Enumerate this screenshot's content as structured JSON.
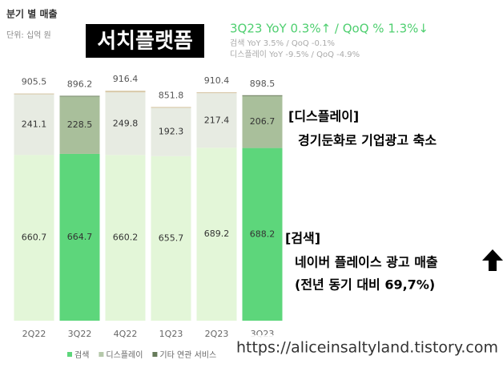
{
  "chart_data": {
    "type": "stacked-bar",
    "title": "분기 별 매출",
    "unit": "단위: 십억 원",
    "badge": "서치플랫폼",
    "headline": "3Q23 YoY 0.3%↑ / QoQ % 1.3%↓",
    "sublines": [
      "검색 YoY 3.5% / QoQ -0.1%",
      "디스플레이 YoY -9.5% / QoQ -4.9%"
    ],
    "categories": [
      "2Q22",
      "3Q22",
      "4Q22",
      "1Q23",
      "2Q23",
      "3Q23"
    ],
    "series": [
      {
        "name": "검색",
        "color": "#5dd67b",
        "colors": [
          "#e3f6d8",
          "#5dd67b",
          "#e3f6d8",
          "#e3f6d8",
          "#e3f6d8",
          "#5dd67b"
        ],
        "values": [
          660.7,
          664.7,
          660.2,
          655.7,
          689.2,
          688.2
        ]
      },
      {
        "name": "디스플레이",
        "color": "#b5c8aa",
        "colors": [
          "#e7ebe2",
          "#a9bf9b",
          "#e7ebe2",
          "#e7ebe2",
          "#e7ebe2",
          "#a9bf9b"
        ],
        "values": [
          241.1,
          228.5,
          249.8,
          192.3,
          217.4,
          206.7
        ]
      },
      {
        "name": "기타 연관 서비스",
        "color": "#667b5a",
        "colors": [
          "#d8c8a8",
          "#6e7f60",
          "#d8c8a8",
          "#d8c8a8",
          "#d8c8a8",
          "#6e7f60"
        ],
        "values": [
          3.7,
          3.0,
          6.4,
          3.8,
          3.8,
          3.6
        ]
      }
    ],
    "totals": [
      905.5,
      896.2,
      916.4,
      851.8,
      910.4,
      898.5
    ],
    "ylim": [
      0,
      1000
    ],
    "annotations": [
      "[디스플레이]",
      "경기둔화로 기업광고 축소",
      "[검색]",
      "네이버 플레이스 광고 매출",
      "(전년 동기 대비 69,7%)"
    ],
    "watermark": "https://aliceinsaltyland.tistory.com"
  }
}
